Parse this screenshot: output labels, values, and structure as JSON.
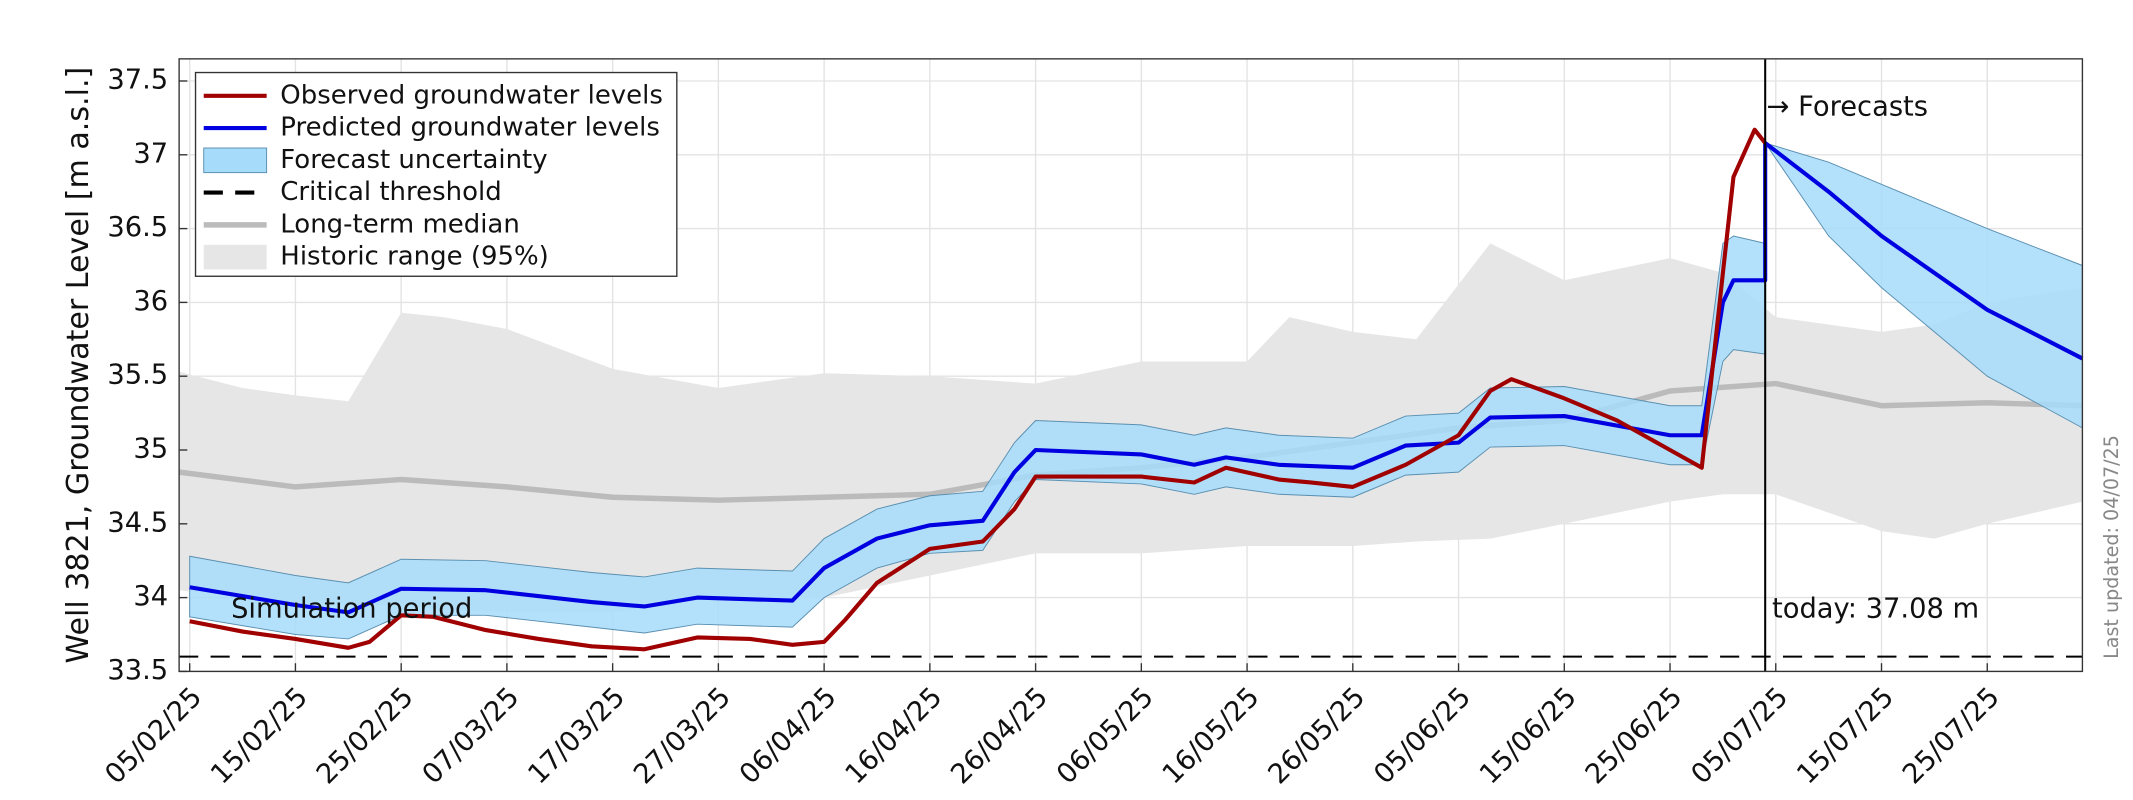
{
  "chart_data": {
    "type": "line",
    "ylabel": "Well 3821, Groundwater Level [m a.s.l.]",
    "xlim": [
      "2025-02-04",
      "2025-08-03"
    ],
    "ylim": [
      33.5,
      37.65
    ],
    "yticks": [
      33.5,
      34,
      34.5,
      35,
      35.5,
      36,
      36.5,
      37,
      37.5
    ],
    "xticks": [
      {
        "value": "2025-02-05",
        "label": "05/02/25"
      },
      {
        "value": "2025-02-15",
        "label": "15/02/25"
      },
      {
        "value": "2025-02-25",
        "label": "25/02/25"
      },
      {
        "value": "2025-03-07",
        "label": "07/03/25"
      },
      {
        "value": "2025-03-17",
        "label": "17/03/25"
      },
      {
        "value": "2025-03-27",
        "label": "27/03/25"
      },
      {
        "value": "2025-04-06",
        "label": "06/04/25"
      },
      {
        "value": "2025-04-16",
        "label": "16/04/25"
      },
      {
        "value": "2025-04-26",
        "label": "26/04/25"
      },
      {
        "value": "2025-05-06",
        "label": "06/05/25"
      },
      {
        "value": "2025-05-16",
        "label": "16/05/25"
      },
      {
        "value": "2025-05-26",
        "label": "26/05/25"
      },
      {
        "value": "2025-06-05",
        "label": "05/06/25"
      },
      {
        "value": "2025-06-15",
        "label": "15/06/25"
      },
      {
        "value": "2025-06-25",
        "label": "25/06/25"
      },
      {
        "value": "2025-07-05",
        "label": "05/07/25"
      },
      {
        "value": "2025-07-15",
        "label": "15/07/25"
      },
      {
        "value": "2025-07-25",
        "label": "25/07/25"
      }
    ],
    "grid": true,
    "legend": "upper left",
    "today": "2025-07-04",
    "annotations": {
      "simulation": "Simulation period",
      "forecasts": "→ Forecasts",
      "today": "today: 37.08 m",
      "updated": "Last updated: 04/07/25"
    },
    "series": [
      {
        "name": "Observed groundwater levels",
        "kind": "line",
        "color": "#a00000",
        "x": [
          "2025-02-05",
          "2025-02-10",
          "2025-02-15",
          "2025-02-20",
          "2025-02-22",
          "2025-02-25",
          "2025-02-28",
          "2025-03-05",
          "2025-03-10",
          "2025-03-15",
          "2025-03-20",
          "2025-03-25",
          "2025-03-30",
          "2025-04-03",
          "2025-04-06",
          "2025-04-08",
          "2025-04-11",
          "2025-04-16",
          "2025-04-21",
          "2025-04-24",
          "2025-04-26",
          "2025-05-01",
          "2025-05-06",
          "2025-05-11",
          "2025-05-14",
          "2025-05-19",
          "2025-05-22",
          "2025-05-26",
          "2025-05-31",
          "2025-06-05",
          "2025-06-08",
          "2025-06-10",
          "2025-06-15",
          "2025-06-20",
          "2025-06-25",
          "2025-06-28",
          "2025-06-30",
          "2025-07-01",
          "2025-07-03",
          "2025-07-04"
        ],
        "values": [
          33.84,
          33.77,
          33.72,
          33.66,
          33.7,
          33.88,
          33.87,
          33.78,
          33.72,
          33.67,
          33.65,
          33.73,
          33.72,
          33.68,
          33.7,
          33.85,
          34.1,
          34.33,
          34.38,
          34.6,
          34.82,
          34.82,
          34.82,
          34.78,
          34.88,
          34.8,
          34.78,
          34.75,
          34.9,
          35.1,
          35.4,
          35.48,
          35.35,
          35.2,
          35.0,
          34.88,
          36.2,
          36.85,
          37.17,
          37.08
        ]
      },
      {
        "name": "Predicted groundwater levels",
        "kind": "line",
        "color": "#0000e0",
        "x": [
          "2025-02-05",
          "2025-02-15",
          "2025-02-20",
          "2025-02-25",
          "2025-03-05",
          "2025-03-15",
          "2025-03-20",
          "2025-03-25",
          "2025-04-03",
          "2025-04-06",
          "2025-04-11",
          "2025-04-16",
          "2025-04-21",
          "2025-04-24",
          "2025-04-26",
          "2025-05-06",
          "2025-05-11",
          "2025-05-14",
          "2025-05-19",
          "2025-05-26",
          "2025-05-31",
          "2025-06-05",
          "2025-06-08",
          "2025-06-15",
          "2025-06-25",
          "2025-06-28",
          "2025-06-30",
          "2025-07-01",
          "2025-07-04",
          "2025-07-04",
          "2025-07-10",
          "2025-07-15",
          "2025-07-20",
          "2025-07-25",
          "2025-08-03"
        ],
        "values": [
          34.07,
          33.95,
          33.9,
          34.06,
          34.05,
          33.97,
          33.94,
          34.0,
          33.98,
          34.2,
          34.4,
          34.49,
          34.52,
          34.85,
          35.0,
          34.97,
          34.9,
          34.95,
          34.9,
          34.88,
          35.03,
          35.05,
          35.22,
          35.23,
          35.1,
          35.1,
          36.0,
          36.15,
          36.15,
          37.08,
          36.75,
          36.45,
          36.2,
          35.95,
          35.62
        ]
      },
      {
        "name": "Forecast uncertainty",
        "kind": "band",
        "color": "#a6dcfa",
        "x": [
          "2025-02-05",
          "2025-02-15",
          "2025-02-20",
          "2025-02-25",
          "2025-03-05",
          "2025-03-15",
          "2025-03-20",
          "2025-03-25",
          "2025-04-03",
          "2025-04-06",
          "2025-04-11",
          "2025-04-16",
          "2025-04-21",
          "2025-04-24",
          "2025-04-26",
          "2025-05-06",
          "2025-05-11",
          "2025-05-14",
          "2025-05-19",
          "2025-05-26",
          "2025-05-31",
          "2025-06-05",
          "2025-06-08",
          "2025-06-15",
          "2025-06-25",
          "2025-06-28",
          "2025-06-30",
          "2025-07-01",
          "2025-07-04",
          "2025-07-04",
          "2025-07-10",
          "2025-07-15",
          "2025-07-20",
          "2025-07-25",
          "2025-08-03"
        ],
        "lower": [
          33.87,
          33.75,
          33.72,
          33.88,
          33.88,
          33.8,
          33.76,
          33.82,
          33.8,
          34.0,
          34.2,
          34.3,
          34.32,
          34.65,
          34.8,
          34.77,
          34.7,
          34.75,
          34.7,
          34.68,
          34.83,
          34.85,
          35.02,
          35.03,
          34.9,
          34.9,
          35.6,
          35.68,
          35.65,
          37.08,
          36.45,
          36.1,
          35.8,
          35.5,
          35.15
        ],
        "upper": [
          34.28,
          34.15,
          34.1,
          34.26,
          34.25,
          34.17,
          34.14,
          34.2,
          34.18,
          34.4,
          34.6,
          34.69,
          34.72,
          35.05,
          35.2,
          35.17,
          35.1,
          35.15,
          35.1,
          35.08,
          35.23,
          35.25,
          35.42,
          35.43,
          35.3,
          35.3,
          36.4,
          36.45,
          36.4,
          37.08,
          36.95,
          36.8,
          36.65,
          36.5,
          36.25
        ]
      },
      {
        "name": "Critical threshold",
        "kind": "hline",
        "color": "#000000",
        "value": 33.6
      },
      {
        "name": "Long-term median",
        "kind": "line",
        "color": "#bbbbbb",
        "x": [
          "2025-02-04",
          "2025-02-15",
          "2025-02-25",
          "2025-03-07",
          "2025-03-17",
          "2025-03-27",
          "2025-04-06",
          "2025-04-16",
          "2025-04-26",
          "2025-05-06",
          "2025-05-16",
          "2025-05-26",
          "2025-06-05",
          "2025-06-15",
          "2025-06-25",
          "2025-07-05",
          "2025-07-15",
          "2025-07-25",
          "2025-08-03"
        ],
        "values": [
          34.85,
          34.75,
          34.8,
          34.75,
          34.68,
          34.66,
          34.68,
          34.7,
          34.83,
          34.88,
          34.95,
          35.05,
          35.15,
          35.2,
          35.4,
          35.45,
          35.3,
          35.32,
          35.3
        ]
      },
      {
        "name": "Historic range (95%)",
        "kind": "band",
        "color": "#e6e6e6",
        "x": [
          "2025-02-04",
          "2025-02-10",
          "2025-02-15",
          "2025-02-20",
          "2025-02-25",
          "2025-03-01",
          "2025-03-07",
          "2025-03-17",
          "2025-03-27",
          "2025-04-06",
          "2025-04-16",
          "2025-04-26",
          "2025-05-06",
          "2025-05-16",
          "2025-05-20",
          "2025-05-26",
          "2025-06-01",
          "2025-06-08",
          "2025-06-15",
          "2025-06-25",
          "2025-06-30",
          "2025-07-05",
          "2025-07-15",
          "2025-07-20",
          "2025-07-25",
          "2025-08-03"
        ],
        "lower": [
          34.05,
          34.0,
          33.97,
          33.95,
          33.95,
          33.92,
          33.9,
          33.9,
          34.0,
          34.0,
          34.15,
          34.3,
          34.3,
          34.35,
          34.35,
          34.35,
          34.38,
          34.4,
          34.5,
          34.65,
          34.7,
          34.7,
          34.45,
          34.4,
          34.5,
          34.65
        ],
        "upper": [
          35.53,
          35.42,
          35.37,
          35.33,
          35.93,
          35.9,
          35.82,
          35.55,
          35.42,
          35.52,
          35.5,
          35.45,
          35.6,
          35.6,
          35.9,
          35.8,
          35.75,
          36.4,
          36.15,
          36.3,
          36.2,
          35.9,
          35.8,
          35.85,
          36.0,
          36.1
        ]
      }
    ]
  }
}
